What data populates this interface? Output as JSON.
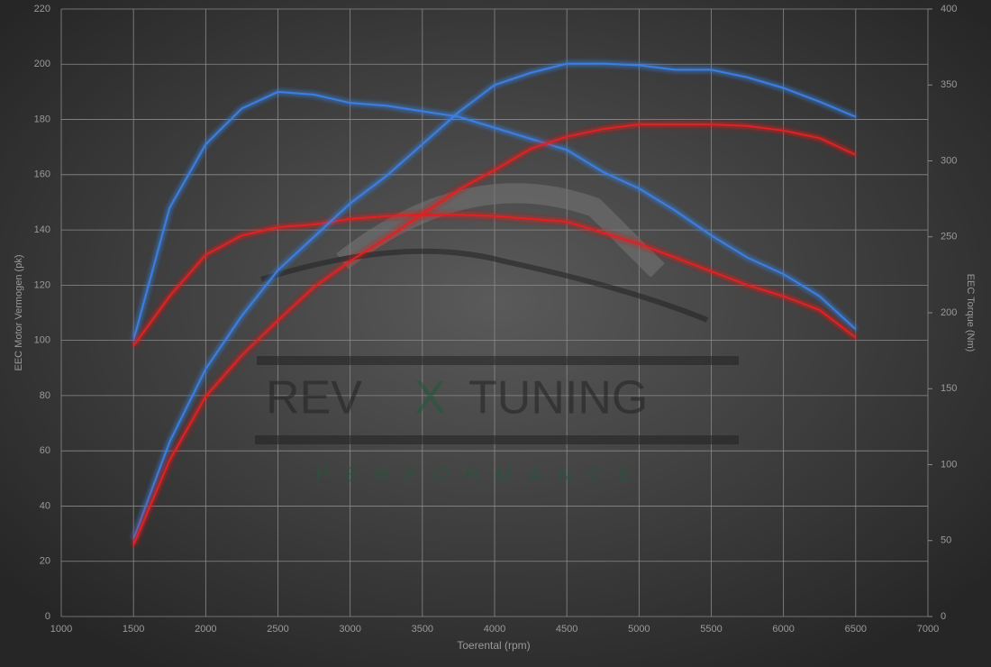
{
  "chart_data": {
    "type": "line",
    "xlabel": "Toerental (rpm)",
    "ylabel": "EEC Motor Vermogen (pk)",
    "y2label": "EEC Torque (Nm)",
    "watermark": {
      "brand_left": "REV",
      "brand_mid": "X",
      "brand_right": "TUNING",
      "tagline": "PERFORMANCE"
    },
    "x": [
      1500,
      1750,
      2000,
      2250,
      2500,
      2750,
      3000,
      3250,
      3500,
      3750,
      4000,
      4250,
      4500,
      4750,
      5000,
      5250,
      5500,
      5750,
      6000,
      6250,
      6500
    ],
    "series": [
      {
        "color": "#3a7fe0",
        "values": [
          100,
          148,
          171,
          184,
          190,
          189,
          186,
          185,
          183,
          181,
          177,
          173,
          169,
          161,
          155,
          147,
          138,
          130,
          124,
          116,
          104
        ]
      },
      {
        "color": "#e02020",
        "values": [
          98,
          116,
          131,
          138,
          141,
          142,
          144,
          145,
          145.5,
          145.5,
          145,
          144,
          143,
          139,
          135,
          130,
          125,
          120,
          116,
          111,
          101
        ]
      },
      {
        "color": "#3a7fe0",
        "axis": "y2",
        "values": [
          51,
          115,
          163,
          198,
          228,
          250,
          272,
          290,
          311,
          332,
          350,
          358,
          364,
          364,
          363,
          360,
          360,
          355,
          348,
          339,
          329
        ]
      },
      {
        "color": "#e02020",
        "axis": "y2",
        "values": [
          47,
          103,
          145,
          172,
          195,
          217,
          234,
          249,
          265,
          281,
          294,
          308,
          316,
          321,
          324,
          324,
          324,
          323,
          320,
          315,
          304
        ]
      }
    ],
    "xlim": [
      1000,
      7000
    ],
    "xticks": [
      1000,
      1500,
      2000,
      2500,
      3000,
      3500,
      4000,
      4500,
      5000,
      5500,
      6000,
      6500,
      7000
    ],
    "ylim": [
      0,
      220
    ],
    "yticks": [
      0,
      20,
      40,
      60,
      80,
      100,
      120,
      140,
      160,
      180,
      200,
      220
    ],
    "y2lim": [
      0,
      400
    ],
    "y2ticks": [
      0,
      50,
      100,
      150,
      200,
      250,
      300,
      350,
      400
    ],
    "grid": true
  }
}
